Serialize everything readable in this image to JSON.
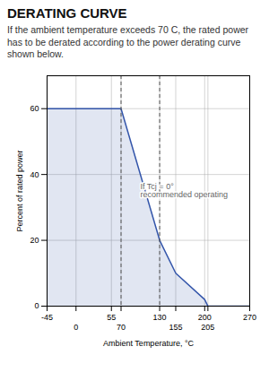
{
  "chart_data": {
    "type": "area",
    "title": "DERATING CURVE",
    "subtitle": "If the ambient temperature exceeds 70 C, the rated power has to be derated according to the power derating curve shown below.",
    "xlabel": "Ambient Temperature, °C",
    "ylabel": "Percent of rated power",
    "x": [
      -45,
      0,
      70,
      130,
      155,
      200,
      205,
      270
    ],
    "values": [
      60,
      60,
      60,
      20,
      10,
      2,
      0,
      0
    ],
    "color": "#3355aa",
    "xlim": [
      -45,
      270
    ],
    "xticks": [
      -45,
      0,
      55,
      70,
      130,
      155,
      200,
      205,
      270
    ],
    "ylim": [
      0,
      70
    ],
    "yticks": [
      0,
      20,
      40,
      60
    ],
    "grid": true,
    "vlines": [
      70,
      130
    ],
    "annotations": [
      {
        "x": 100,
        "y": 35,
        "text": "If Tcj = 0° recommended operating"
      }
    ]
  }
}
